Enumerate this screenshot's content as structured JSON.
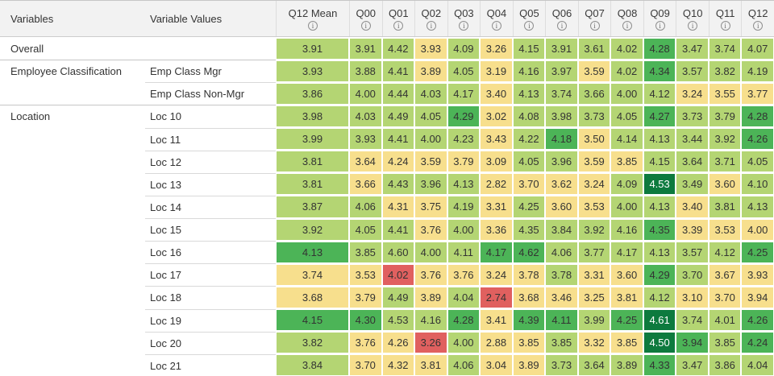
{
  "palette": {
    "red": "#e0605f",
    "yellow": "#f7df8d",
    "light_green": "#b4d573",
    "medium_green": "#4cb457",
    "dark_green": "#0d7a3e",
    "dark_green_text": "#ffffff",
    "cell_text": "#333333",
    "header_bg": "#f2f2f2"
  },
  "header": {
    "variables_label": "Variables",
    "variable_values_label": "Variable Values",
    "info_glyph": "i",
    "q_columns": [
      "Q12 Mean",
      "Q00",
      "Q01",
      "Q02",
      "Q03",
      "Q04",
      "Q05",
      "Q06",
      "Q07",
      "Q08",
      "Q09",
      "Q10",
      "Q11",
      "Q12"
    ]
  },
  "chart_data": {
    "type": "heatmap",
    "columns": [
      "Q12 Mean",
      "Q00",
      "Q01",
      "Q02",
      "Q03",
      "Q04",
      "Q05",
      "Q06",
      "Q07",
      "Q08",
      "Q09",
      "Q10",
      "Q11",
      "Q12"
    ],
    "color_classes": {
      "R": "red",
      "Y": "yellow",
      "LG": "light_green",
      "MG": "medium_green",
      "DG": "dark_green"
    },
    "rows": [
      {
        "variable": "Overall",
        "variable_value": "",
        "separator": "none",
        "values": [
          3.91,
          3.91,
          4.42,
          3.93,
          4.09,
          3.26,
          4.15,
          3.91,
          3.61,
          4.02,
          4.28,
          3.47,
          3.74,
          4.07
        ],
        "colors": [
          "LG",
          "LG",
          "LG",
          "Y",
          "LG",
          "Y",
          "LG",
          "LG",
          "LG",
          "LG",
          "MG",
          "LG",
          "LG",
          "LG"
        ]
      },
      {
        "variable": "Employee Classification",
        "variable_value": "Emp Class Mgr",
        "separator": "full",
        "values": [
          3.93,
          3.88,
          4.41,
          3.89,
          4.05,
          3.19,
          4.16,
          3.97,
          3.59,
          4.02,
          4.34,
          3.57,
          3.82,
          4.19
        ],
        "colors": [
          "LG",
          "LG",
          "LG",
          "Y",
          "LG",
          "Y",
          "LG",
          "LG",
          "Y",
          "LG",
          "MG",
          "LG",
          "LG",
          "LG"
        ]
      },
      {
        "variable": "",
        "variable_value": "Emp Class Non-Mgr",
        "separator": "partial",
        "values": [
          3.86,
          4.0,
          4.44,
          4.03,
          4.17,
          3.4,
          4.13,
          3.74,
          3.66,
          4.0,
          4.12,
          3.24,
          3.55,
          3.77
        ],
        "colors": [
          "LG",
          "LG",
          "LG",
          "LG",
          "LG",
          "Y",
          "LG",
          "LG",
          "LG",
          "LG",
          "LG",
          "Y",
          "Y",
          "Y"
        ]
      },
      {
        "variable": "Location",
        "variable_value": "Loc 10",
        "separator": "full",
        "values": [
          3.98,
          4.03,
          4.49,
          4.05,
          4.29,
          3.02,
          4.08,
          3.98,
          3.73,
          4.05,
          4.27,
          3.73,
          3.79,
          4.28
        ],
        "colors": [
          "LG",
          "LG",
          "LG",
          "LG",
          "MG",
          "Y",
          "LG",
          "LG",
          "LG",
          "LG",
          "MG",
          "LG",
          "LG",
          "MG"
        ]
      },
      {
        "variable": "",
        "variable_value": "Loc 11",
        "separator": "partial",
        "values": [
          3.99,
          3.93,
          4.41,
          4.0,
          4.23,
          3.43,
          4.22,
          4.18,
          3.5,
          4.14,
          4.13,
          3.44,
          3.92,
          4.26
        ],
        "colors": [
          "LG",
          "LG",
          "LG",
          "LG",
          "LG",
          "Y",
          "LG",
          "MG",
          "Y",
          "LG",
          "LG",
          "LG",
          "LG",
          "MG"
        ]
      },
      {
        "variable": "",
        "variable_value": "Loc 12",
        "separator": "partial",
        "values": [
          3.81,
          3.64,
          4.24,
          3.59,
          3.79,
          3.09,
          4.05,
          3.96,
          3.59,
          3.85,
          4.15,
          3.64,
          3.71,
          4.05
        ],
        "colors": [
          "LG",
          "Y",
          "Y",
          "Y",
          "Y",
          "Y",
          "LG",
          "LG",
          "Y",
          "Y",
          "LG",
          "LG",
          "LG",
          "LG"
        ]
      },
      {
        "variable": "",
        "variable_value": "Loc 13",
        "separator": "partial",
        "values": [
          3.81,
          3.66,
          4.43,
          3.96,
          4.13,
          2.82,
          3.7,
          3.62,
          3.24,
          4.09,
          4.53,
          3.49,
          3.6,
          4.1
        ],
        "colors": [
          "LG",
          "Y",
          "LG",
          "LG",
          "LG",
          "Y",
          "Y",
          "Y",
          "Y",
          "LG",
          "DG",
          "LG",
          "Y",
          "LG"
        ]
      },
      {
        "variable": "",
        "variable_value": "Loc 14",
        "separator": "partial",
        "values": [
          3.87,
          4.06,
          4.31,
          3.75,
          4.19,
          3.31,
          4.25,
          3.6,
          3.53,
          4.0,
          4.13,
          3.4,
          3.81,
          4.13
        ],
        "colors": [
          "LG",
          "LG",
          "Y",
          "Y",
          "LG",
          "Y",
          "LG",
          "Y",
          "Y",
          "LG",
          "LG",
          "Y",
          "LG",
          "LG"
        ]
      },
      {
        "variable": "",
        "variable_value": "Loc 15",
        "separator": "partial",
        "values": [
          3.92,
          4.05,
          4.41,
          3.76,
          4.0,
          3.36,
          4.35,
          3.84,
          3.92,
          4.16,
          4.35,
          3.39,
          3.53,
          4.0
        ],
        "colors": [
          "LG",
          "LG",
          "LG",
          "Y",
          "LG",
          "Y",
          "LG",
          "LG",
          "LG",
          "LG",
          "MG",
          "Y",
          "Y",
          "Y"
        ]
      },
      {
        "variable": "",
        "variable_value": "Loc 16",
        "separator": "partial",
        "values": [
          4.13,
          3.85,
          4.6,
          4.0,
          4.11,
          4.17,
          4.62,
          4.06,
          3.77,
          4.17,
          4.13,
          3.57,
          4.12,
          4.25
        ],
        "colors": [
          "MG",
          "LG",
          "LG",
          "LG",
          "LG",
          "MG",
          "MG",
          "LG",
          "LG",
          "LG",
          "LG",
          "LG",
          "LG",
          "MG"
        ]
      },
      {
        "variable": "",
        "variable_value": "Loc 17",
        "separator": "partial",
        "values": [
          3.74,
          3.53,
          4.02,
          3.76,
          3.76,
          3.24,
          3.78,
          3.78,
          3.31,
          3.6,
          4.29,
          3.7,
          3.67,
          3.93
        ],
        "colors": [
          "Y",
          "Y",
          "R",
          "Y",
          "Y",
          "Y",
          "Y",
          "LG",
          "Y",
          "Y",
          "MG",
          "LG",
          "Y",
          "Y"
        ]
      },
      {
        "variable": "",
        "variable_value": "Loc 18",
        "separator": "partial",
        "values": [
          3.68,
          3.79,
          4.49,
          3.89,
          4.04,
          2.74,
          3.68,
          3.46,
          3.25,
          3.81,
          4.12,
          3.1,
          3.7,
          3.94
        ],
        "colors": [
          "Y",
          "Y",
          "LG",
          "Y",
          "LG",
          "R",
          "Y",
          "Y",
          "Y",
          "Y",
          "LG",
          "Y",
          "Y",
          "Y"
        ]
      },
      {
        "variable": "",
        "variable_value": "Loc 19",
        "separator": "partial",
        "values": [
          4.15,
          4.3,
          4.53,
          4.16,
          4.28,
          3.41,
          4.39,
          4.11,
          3.99,
          4.25,
          4.61,
          3.74,
          4.01,
          4.26
        ],
        "colors": [
          "MG",
          "MG",
          "LG",
          "LG",
          "MG",
          "Y",
          "MG",
          "MG",
          "LG",
          "MG",
          "DG",
          "LG",
          "LG",
          "MG"
        ]
      },
      {
        "variable": "",
        "variable_value": "Loc 20",
        "separator": "partial",
        "values": [
          3.82,
          3.76,
          4.26,
          3.26,
          4.0,
          2.88,
          3.85,
          3.85,
          3.32,
          3.85,
          4.5,
          3.94,
          3.85,
          4.24
        ],
        "colors": [
          "LG",
          "Y",
          "Y",
          "R",
          "LG",
          "Y",
          "Y",
          "LG",
          "Y",
          "Y",
          "DG",
          "MG",
          "LG",
          "MG"
        ]
      },
      {
        "variable": "",
        "variable_value": "Loc 21",
        "separator": "partial",
        "values": [
          3.84,
          3.7,
          4.32,
          3.81,
          4.06,
          3.04,
          3.89,
          3.73,
          3.64,
          3.89,
          4.33,
          3.47,
          3.86,
          4.04
        ],
        "colors": [
          "LG",
          "Y",
          "Y",
          "Y",
          "LG",
          "Y",
          "Y",
          "LG",
          "LG",
          "LG",
          "MG",
          "LG",
          "LG",
          "LG"
        ]
      }
    ]
  }
}
